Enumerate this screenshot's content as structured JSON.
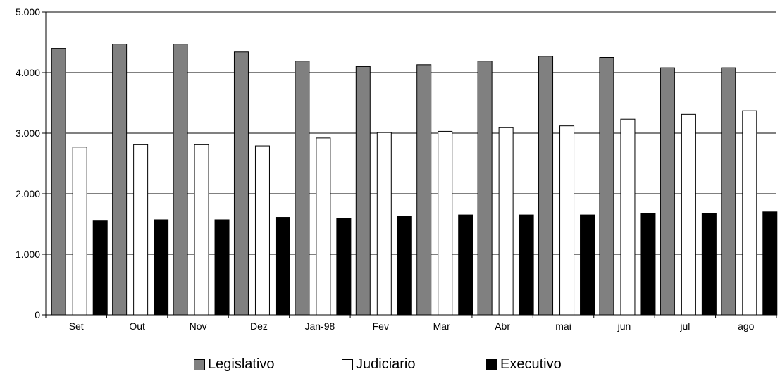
{
  "chart_data": {
    "type": "bar",
    "title": "",
    "xlabel": "",
    "ylabel": "",
    "categories": [
      "Set",
      "Out",
      "Nov",
      "Dez",
      "Jan-98",
      "Fev",
      "Mar",
      "Abr",
      "mai",
      "jun",
      "jul",
      "ago"
    ],
    "series": [
      {
        "name": "Legislativo",
        "color": "#808080",
        "values": [
          4400,
          4470,
          4470,
          4340,
          4190,
          4100,
          4130,
          4190,
          4270,
          4250,
          4080,
          4080
        ]
      },
      {
        "name": "Judiciario",
        "color": "#ffffff",
        "values": [
          2770,
          2810,
          2810,
          2790,
          2920,
          3010,
          3030,
          3090,
          3120,
          3230,
          3310,
          3370
        ]
      },
      {
        "name": "Executivo",
        "color": "#000000",
        "values": [
          1550,
          1570,
          1570,
          1610,
          1590,
          1630,
          1650,
          1650,
          1650,
          1670,
          1670,
          1700
        ]
      }
    ],
    "ylim": [
      0,
      5000
    ],
    "yticks": [
      0,
      1000,
      2000,
      3000,
      4000,
      5000
    ],
    "ytick_labels": [
      "0",
      "1.000",
      "2.000",
      "3.000",
      "4.000",
      "5.000"
    ],
    "grid": true,
    "legend_position": "bottom"
  }
}
